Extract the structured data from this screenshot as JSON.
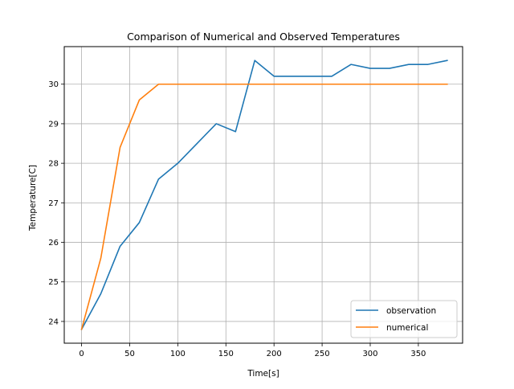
{
  "chart_data": {
    "type": "line",
    "title": "Comparison of Numerical and Observed Temperatures",
    "xlabel": "Time[s]",
    "ylabel": "Temperature[C]",
    "xlim": [
      -18,
      396
    ],
    "ylim": [
      23.45,
      30.95
    ],
    "x_ticks": [
      0,
      50,
      100,
      150,
      200,
      250,
      300,
      350
    ],
    "y_ticks": [
      24,
      25,
      26,
      27,
      28,
      29,
      30
    ],
    "grid": true,
    "legend_position": "lower-right",
    "series": [
      {
        "name": "observation",
        "color": "#1f77b4",
        "x": [
          0,
          20,
          40,
          60,
          80,
          100,
          120,
          140,
          160,
          180,
          200,
          220,
          240,
          260,
          280,
          300,
          320,
          340,
          360,
          380
        ],
        "y": [
          23.8,
          24.7,
          25.9,
          26.5,
          27.6,
          28.0,
          28.5,
          29.0,
          28.8,
          30.6,
          30.2,
          30.2,
          30.2,
          30.2,
          30.5,
          30.4,
          30.4,
          30.5,
          30.5,
          30.6
        ]
      },
      {
        "name": "numerical",
        "color": "#ff7f0e",
        "x": [
          0,
          20,
          40,
          60,
          80,
          100,
          120,
          140,
          160,
          180,
          200,
          220,
          240,
          260,
          280,
          300,
          320,
          340,
          360,
          380
        ],
        "y": [
          23.8,
          25.6,
          28.4,
          29.6,
          30.0,
          30.0,
          30.0,
          30.0,
          30.0,
          30.0,
          30.0,
          30.0,
          30.0,
          30.0,
          30.0,
          30.0,
          30.0,
          30.0,
          30.0,
          30.0
        ]
      }
    ]
  }
}
